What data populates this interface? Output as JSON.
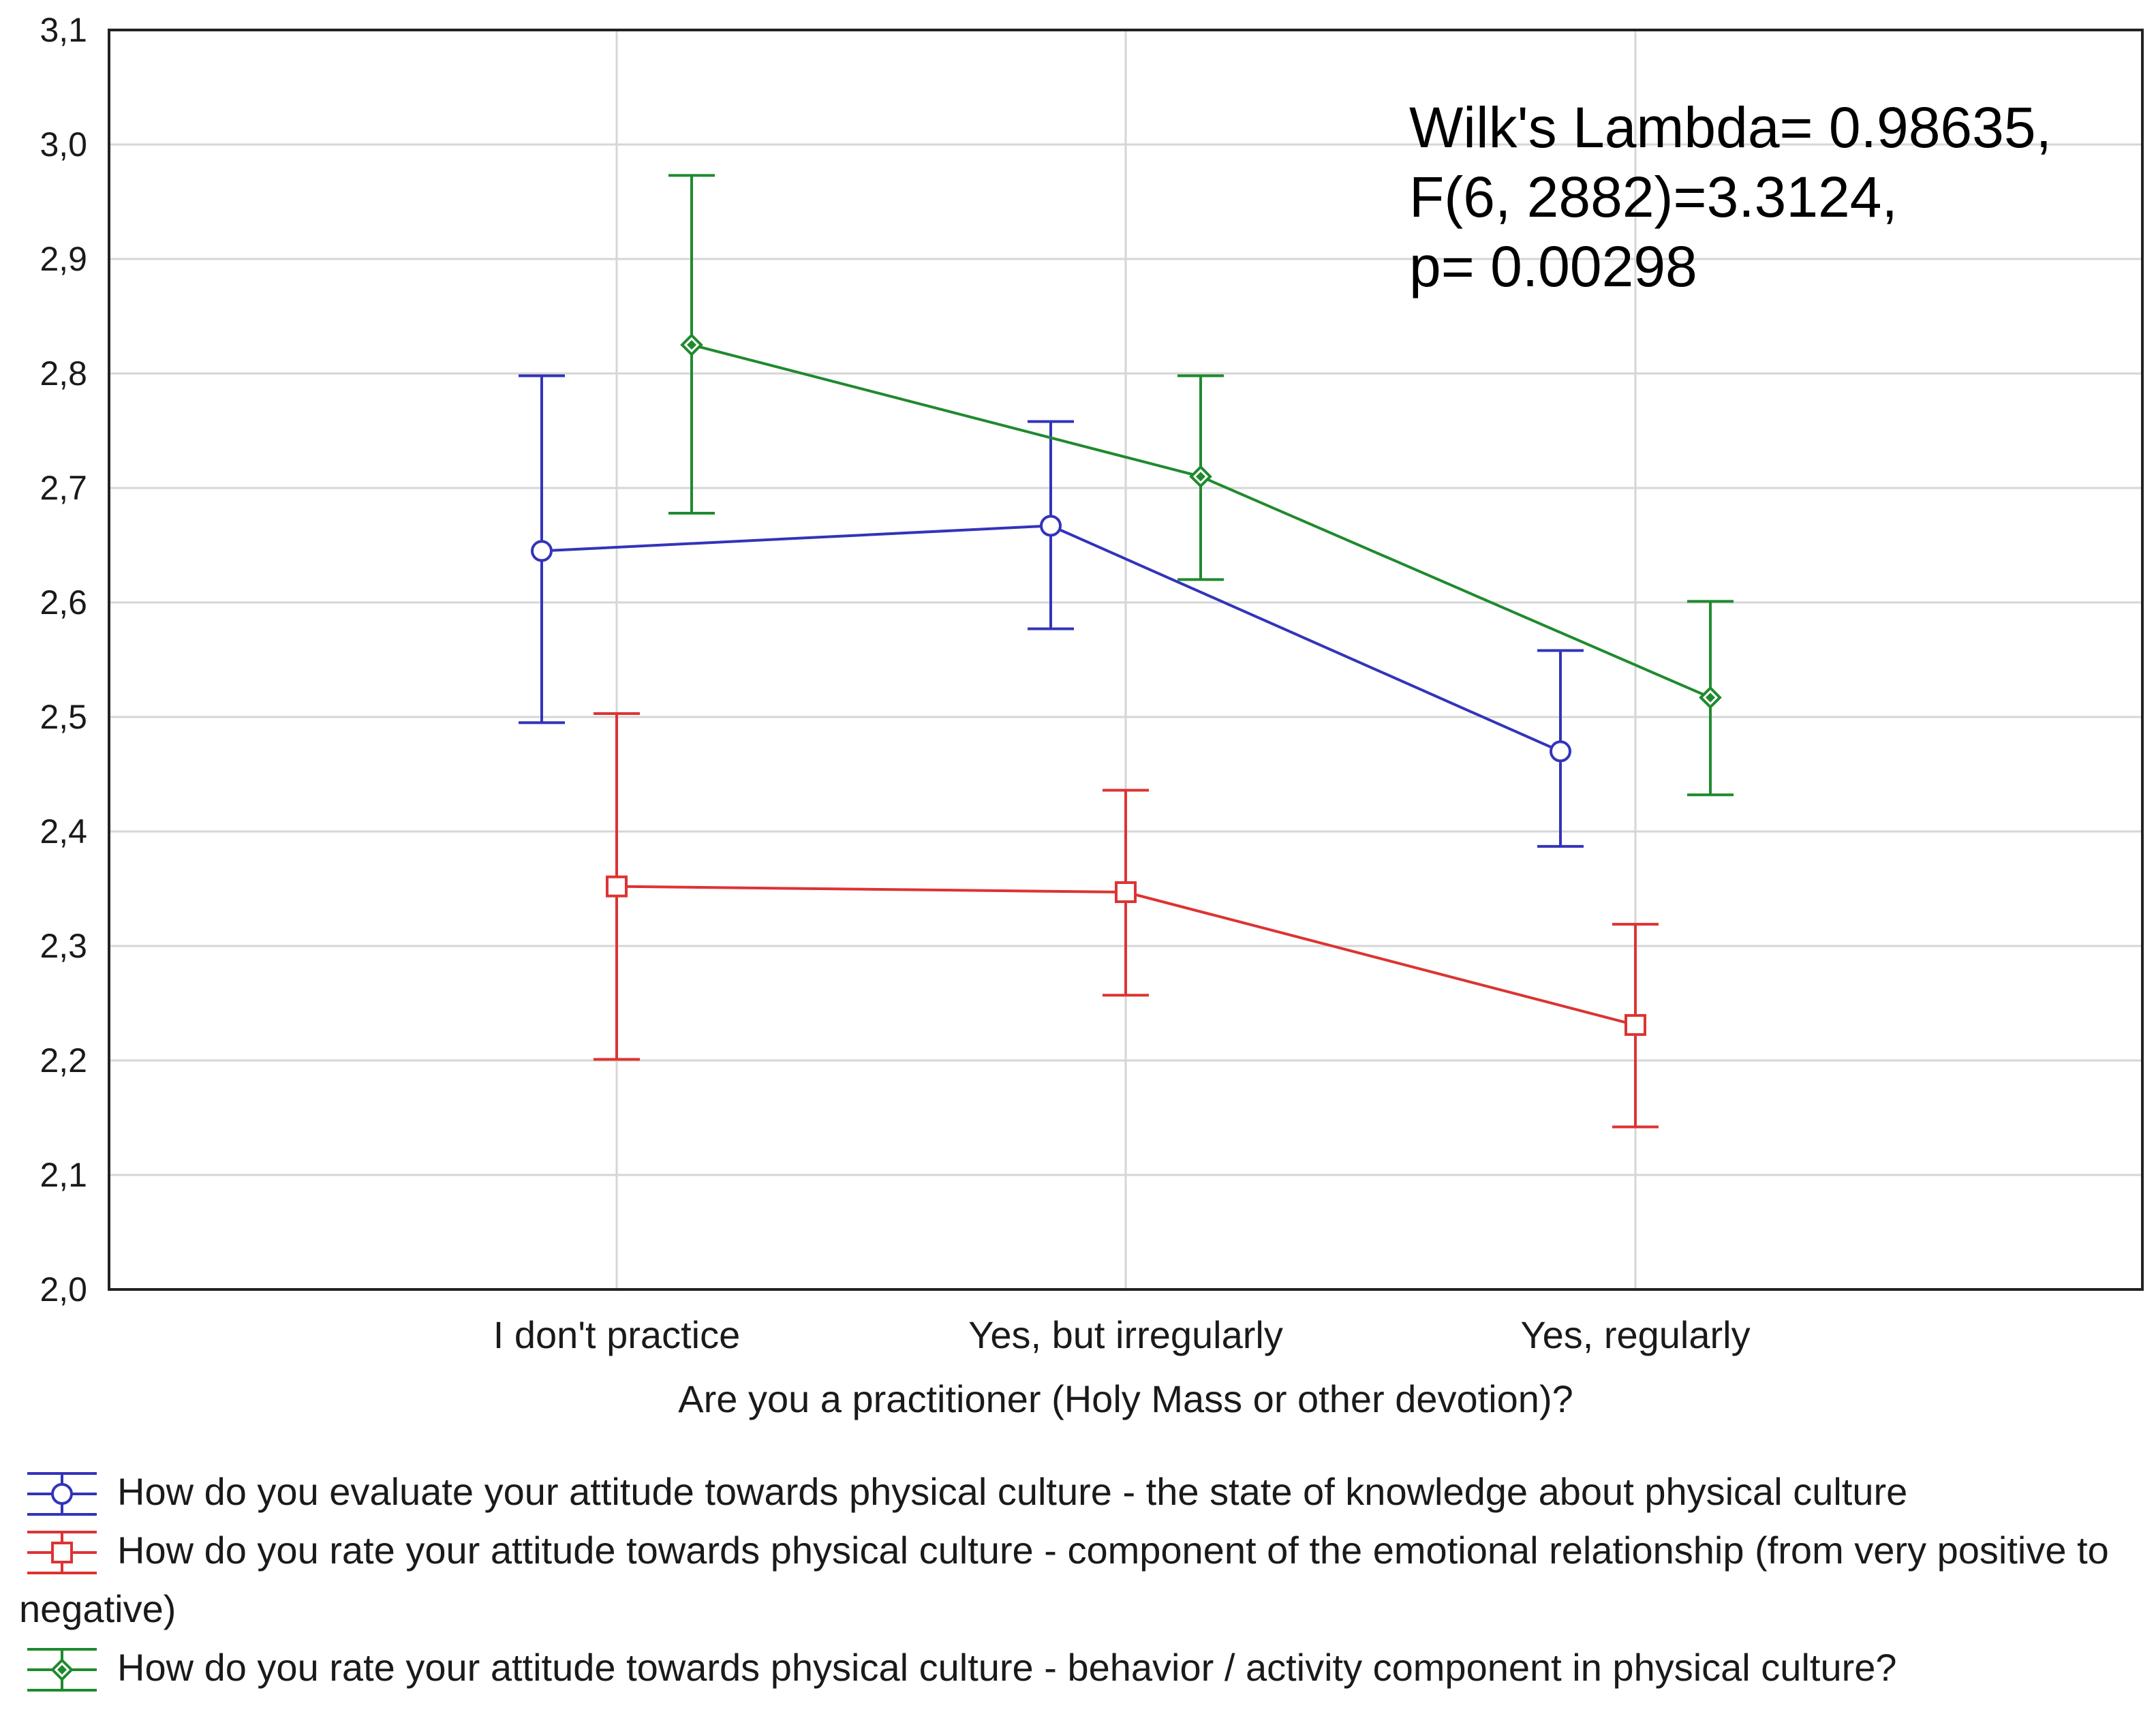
{
  "chart_data": {
    "type": "line",
    "title": "",
    "xlabel": "Are you a practitioner (Holy Mass or other devotion)?",
    "ylabel": "",
    "categories": [
      "I don't practice",
      "Yes, but irregularly",
      "Yes, regularly"
    ],
    "ylim": [
      2.0,
      3.1
    ],
    "yticks": [
      2.0,
      2.1,
      2.2,
      2.3,
      2.4,
      2.5,
      2.6,
      2.7,
      2.8,
      2.9,
      3.0,
      3.1
    ],
    "ytick_labels": [
      "2,0",
      "2,1",
      "2,2",
      "2,3",
      "2,4",
      "2,5",
      "2,6",
      "2,7",
      "2,8",
      "2,9",
      "3,0",
      "3,1"
    ],
    "grid": true,
    "error_bars": true,
    "series": [
      {
        "name": "How do you evaluate your attitude towards physical culture - the state of knowledge about physical culture",
        "color": "#3333bb",
        "marker": "circle",
        "values": [
          2.645,
          2.667,
          2.47
        ],
        "lower": [
          2.495,
          2.577,
          2.387
        ],
        "upper": [
          2.798,
          2.758,
          2.558
        ]
      },
      {
        "name": "How do you rate your attitude towards physical culture - component of the emotional relationship (from very positive to negative)",
        "color": "#dd3333",
        "marker": "square",
        "values": [
          2.352,
          2.347,
          2.231
        ],
        "lower": [
          2.201,
          2.257,
          2.142
        ],
        "upper": [
          2.503,
          2.436,
          2.319
        ]
      },
      {
        "name": "How do you rate your attitude towards physical culture - behavior / activity component in physical culture?",
        "color": "#1f8a2e",
        "marker": "diamond",
        "values": [
          2.825,
          2.71,
          2.517
        ],
        "lower": [
          2.678,
          2.62,
          2.432
        ],
        "upper": [
          2.973,
          2.798,
          2.601
        ]
      }
    ],
    "annotations": [
      "Wilk's Lambda= 0.98635,",
      "F(6, 2882)=3.3124,",
      "p= 0.00298"
    ]
  }
}
